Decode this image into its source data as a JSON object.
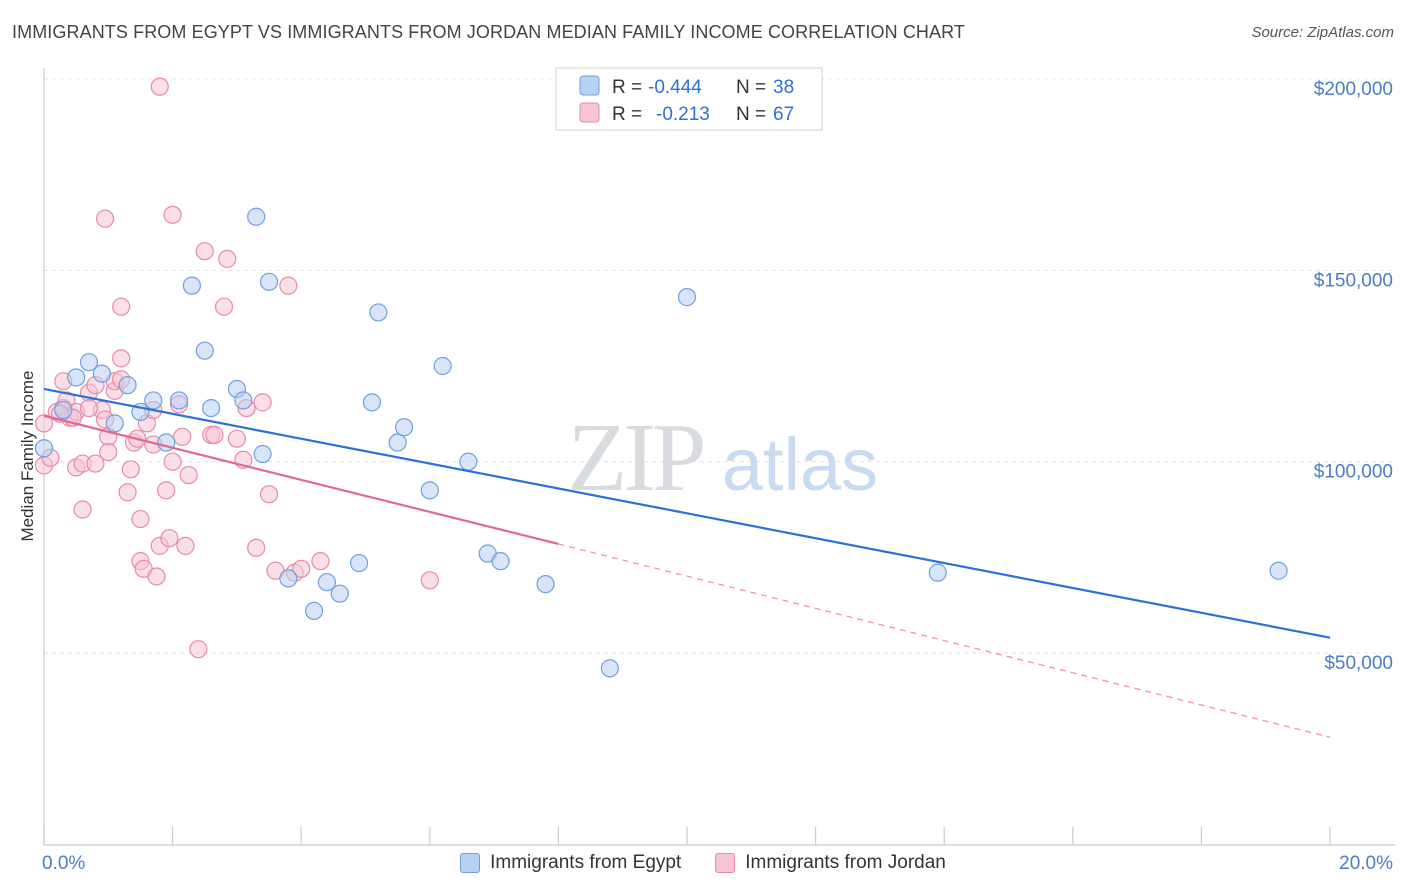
{
  "title": "IMMIGRANTS FROM EGYPT VS IMMIGRANTS FROM JORDAN MEDIAN FAMILY INCOME CORRELATION CHART",
  "source": "Source: ZipAtlas.com",
  "watermark": {
    "zip": "ZIP",
    "atlas": "atlas"
  },
  "chart_data": {
    "type": "scatter",
    "ylabel": "Median Family Income",
    "xlim": [
      0,
      20
    ],
    "ylim": [
      5000,
      210000
    ],
    "x_tick_labels": [
      "0.0%",
      "20.0%"
    ],
    "y_ticks": [
      50000,
      100000,
      150000,
      200000
    ],
    "y_tick_labels": [
      "$50,000",
      "$100,000",
      "$150,000",
      "$200,000"
    ],
    "grid": true,
    "legend_stats": [
      {
        "r_label": "R =",
        "r_value": "-0.444",
        "n_label": "N =",
        "n_value": "38"
      },
      {
        "r_label": "R =",
        "r_value": "-0.213",
        "n_label": "N =",
        "n_value": "67"
      }
    ],
    "series": [
      {
        "name": "Immigrants from Egypt",
        "color": "#6f9fe0",
        "fill": "#b8d0f2",
        "trend_color": "#2b72d6",
        "trend": {
          "x0": 0,
          "y0": 119000,
          "x1": 20,
          "y1": 54000
        },
        "points": [
          [
            0.0,
            103500
          ],
          [
            0.5,
            122000
          ],
          [
            0.7,
            126000
          ],
          [
            0.9,
            123000
          ],
          [
            1.3,
            120000
          ],
          [
            1.1,
            110000
          ],
          [
            1.5,
            113000
          ],
          [
            1.7,
            116000
          ],
          [
            1.9,
            105000
          ],
          [
            2.1,
            116000
          ],
          [
            2.3,
            146000
          ],
          [
            2.5,
            129000
          ],
          [
            2.6,
            114000
          ],
          [
            3.0,
            119000
          ],
          [
            3.1,
            116000
          ],
          [
            3.3,
            164000
          ],
          [
            3.4,
            102000
          ],
          [
            3.5,
            147000
          ],
          [
            3.8,
            69500
          ],
          [
            4.2,
            61000
          ],
          [
            4.4,
            68500
          ],
          [
            4.6,
            65500
          ],
          [
            4.9,
            73500
          ],
          [
            5.1,
            115500
          ],
          [
            5.2,
            139000
          ],
          [
            5.5,
            105000
          ],
          [
            5.6,
            109000
          ],
          [
            6.0,
            92500
          ],
          [
            6.2,
            125000
          ],
          [
            6.6,
            100000
          ],
          [
            6.9,
            76000
          ],
          [
            7.1,
            74000
          ],
          [
            7.8,
            68000
          ],
          [
            8.8,
            46000
          ],
          [
            10.0,
            143000
          ],
          [
            13.9,
            71000
          ],
          [
            19.2,
            71500
          ],
          [
            0.3,
            113500
          ]
        ]
      },
      {
        "name": "Immigrants from Jordan",
        "color": "#e88aa8",
        "fill": "#f6c4d4",
        "trend_color": "#e06a92",
        "trend": {
          "x0": 0,
          "y0": 112000,
          "x1": 8,
          "y1": 78500
        },
        "trend_dashed": {
          "x0": 8,
          "y0": 78500,
          "x1": 20,
          "y1": 28000
        },
        "points": [
          [
            0.0,
            99000
          ],
          [
            0.0,
            110000
          ],
          [
            0.1,
            101000
          ],
          [
            0.2,
            113000
          ],
          [
            0.3,
            114000
          ],
          [
            0.3,
            121000
          ],
          [
            0.35,
            116000
          ],
          [
            0.4,
            111500
          ],
          [
            0.5,
            113000
          ],
          [
            0.5,
            98500
          ],
          [
            0.6,
            99500
          ],
          [
            0.6,
            87500
          ],
          [
            0.7,
            118000
          ],
          [
            0.8,
            99500
          ],
          [
            0.8,
            120000
          ],
          [
            0.9,
            113500
          ],
          [
            0.95,
            111000
          ],
          [
            1.0,
            106500
          ],
          [
            1.0,
            102500
          ],
          [
            1.1,
            118500
          ],
          [
            1.1,
            121000
          ],
          [
            1.2,
            127000
          ],
          [
            1.2,
            140500
          ],
          [
            1.3,
            92000
          ],
          [
            1.35,
            98000
          ],
          [
            1.4,
            105000
          ],
          [
            1.45,
            106000
          ],
          [
            1.5,
            85000
          ],
          [
            1.5,
            74000
          ],
          [
            1.55,
            72000
          ],
          [
            1.6,
            110000
          ],
          [
            1.7,
            113500
          ],
          [
            1.7,
            104500
          ],
          [
            1.75,
            70000
          ],
          [
            1.8,
            78000
          ],
          [
            1.9,
            92500
          ],
          [
            1.95,
            80000
          ],
          [
            2.0,
            100000
          ],
          [
            2.0,
            164500
          ],
          [
            2.1,
            115000
          ],
          [
            2.15,
            106500
          ],
          [
            2.2,
            78000
          ],
          [
            2.25,
            96500
          ],
          [
            2.4,
            51000
          ],
          [
            2.5,
            155000
          ],
          [
            2.6,
            107000
          ],
          [
            2.65,
            107000
          ],
          [
            2.8,
            140500
          ],
          [
            2.85,
            153000
          ],
          [
            3.0,
            106000
          ],
          [
            3.1,
            100500
          ],
          [
            3.15,
            114000
          ],
          [
            3.3,
            77500
          ],
          [
            3.4,
            115500
          ],
          [
            3.5,
            91500
          ],
          [
            3.6,
            71500
          ],
          [
            3.8,
            146000
          ],
          [
            3.9,
            71000
          ],
          [
            4.0,
            72000
          ],
          [
            4.3,
            74000
          ],
          [
            6.0,
            69000
          ],
          [
            1.8,
            198000
          ],
          [
            0.95,
            163500
          ],
          [
            0.45,
            111500
          ],
          [
            0.7,
            114000
          ],
          [
            1.2,
            121500
          ],
          [
            0.25,
            112500
          ]
        ]
      }
    ]
  }
}
